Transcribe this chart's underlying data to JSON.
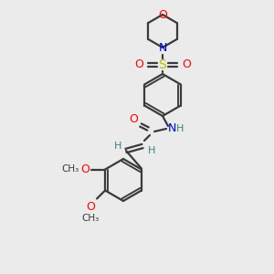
{
  "bg_color": "#ebebeb",
  "bond_color": "#3a3a3a",
  "bond_width": 1.6,
  "atom_colors": {
    "O": "#ff0000",
    "N": "#0000cc",
    "S": "#bbbb00",
    "C": "#3a3a3a",
    "H": "#408080"
  }
}
